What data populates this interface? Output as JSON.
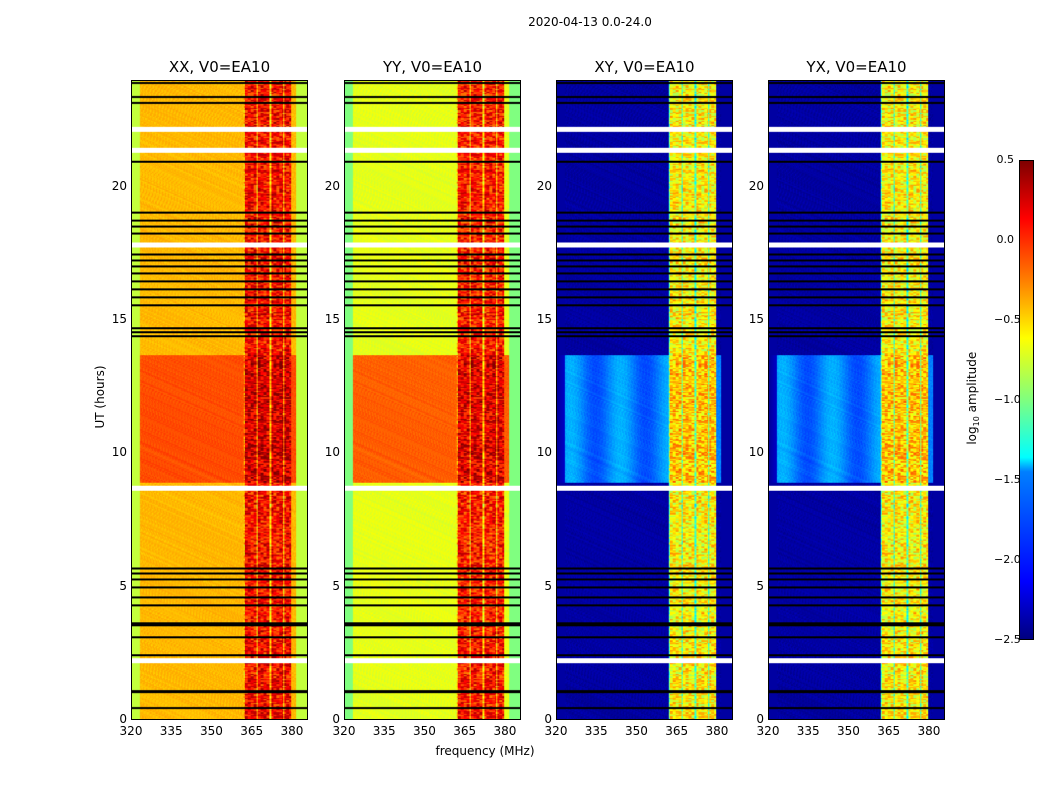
{
  "chart_data": {
    "type": "heatmap",
    "title": "2020-04-13 0.0-24.0",
    "xlabel": "frequency (MHz)",
    "ylabel": "UT (hours)",
    "xlim": [
      320,
      386
    ],
    "ylim": [
      0,
      24
    ],
    "xticks": [
      "320",
      "335",
      "350",
      "365",
      "380"
    ],
    "yticks": [
      "0",
      "5",
      "10",
      "15",
      "20"
    ],
    "colorbar": {
      "label_main": "log",
      "label_sub": "10",
      "label_rest": " amplitude",
      "range": [
        -2.5,
        0.5
      ],
      "ticks": [
        "0.5",
        "0.0",
        "−0.5",
        "−1.0",
        "−1.5",
        "−2.0",
        "−2.5"
      ],
      "colormap": "jet"
    },
    "flagged_hours": [
      0.45,
      1.05,
      1.1,
      2.45,
      3.1,
      3.55,
      3.65,
      4.3,
      4.6,
      5.0,
      5.3,
      5.5,
      5.7,
      14.45,
      14.6,
      14.75,
      15.6,
      15.9,
      16.2,
      16.5,
      16.8,
      17.05,
      17.3,
      17.5,
      18.3,
      18.55,
      18.8,
      19.1,
      21.0,
      23.2,
      23.45,
      23.95
    ],
    "gap_hours": [
      2.2,
      8.7,
      17.85,
      21.4,
      22.2
    ],
    "band_mhz": [
      362,
      382
    ],
    "panels": [
      {
        "title": "XX, V0=EA10",
        "base": -0.42,
        "mid": -0.1,
        "band": 0.1,
        "edge": -0.8
      },
      {
        "title": "YY, V0=EA10",
        "base": -0.7,
        "mid": -0.15,
        "band": 0.05,
        "edge": -1.0
      },
      {
        "title": "XY, V0=EA10",
        "base": -2.4,
        "mid": -1.75,
        "band": -0.6,
        "edge": -2.4
      },
      {
        "title": "YX, V0=EA10",
        "base": -2.4,
        "mid": -1.75,
        "band": -0.6,
        "edge": -2.4
      }
    ]
  }
}
